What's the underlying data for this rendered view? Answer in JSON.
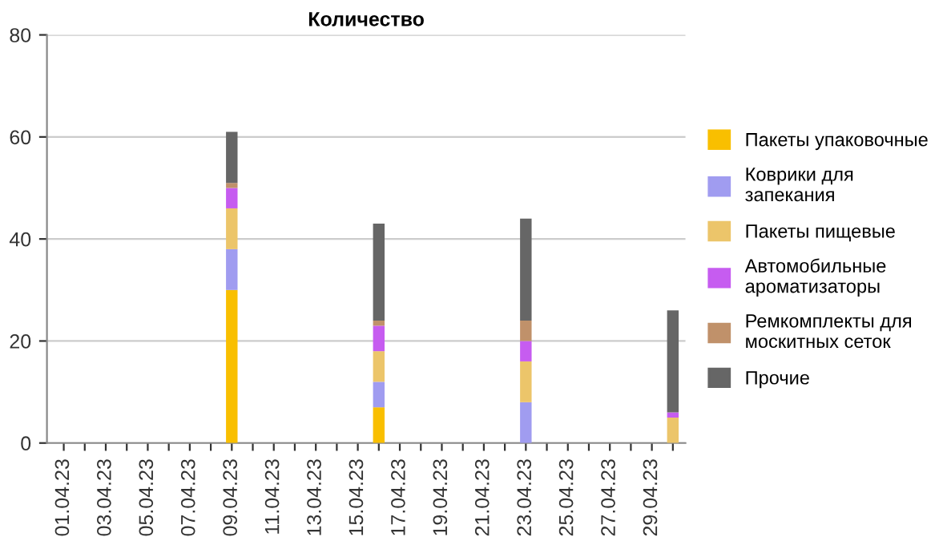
{
  "chart_data": {
    "type": "bar",
    "title": "Количество",
    "stacked": true,
    "categories": [
      "01.04.23",
      null,
      "03.04.23",
      null,
      "05.04.23",
      null,
      "07.04.23",
      null,
      "09.04.23",
      null,
      "11.04.23",
      null,
      "13.04.23",
      null,
      "15.04.23",
      null,
      "17.04.23",
      null,
      "19.04.23",
      null,
      "21.04.23",
      null,
      "23.04.23",
      null,
      "25.04.23",
      null,
      "27.04.23",
      null,
      "29.04.23",
      null
    ],
    "series": [
      {
        "name": "Пакеты упаковочные",
        "color": "#f9bf00",
        "values": [
          0,
          0,
          0,
          0,
          0,
          0,
          0,
          0,
          30,
          0,
          0,
          0,
          0,
          0,
          0,
          7,
          0,
          0,
          0,
          0,
          0,
          0,
          0,
          0,
          0,
          0,
          0,
          0,
          0,
          0
        ]
      },
      {
        "name": "Коврики для\nзапекания",
        "color": "#a09cf0",
        "values": [
          0,
          0,
          0,
          0,
          0,
          0,
          0,
          0,
          8,
          0,
          0,
          0,
          0,
          0,
          0,
          5,
          0,
          0,
          0,
          0,
          0,
          0,
          8,
          0,
          0,
          0,
          0,
          0,
          0,
          0
        ]
      },
      {
        "name": "Пакеты пищевые",
        "color": "#ecc56a",
        "values": [
          0,
          0,
          0,
          0,
          0,
          0,
          0,
          0,
          8,
          0,
          0,
          0,
          0,
          0,
          0,
          6,
          0,
          0,
          0,
          0,
          0,
          0,
          8,
          0,
          0,
          0,
          0,
          0,
          0,
          5
        ]
      },
      {
        "name": "Автомобильные\nароматизаторы",
        "color": "#c65cf0",
        "values": [
          0,
          0,
          0,
          0,
          0,
          0,
          0,
          0,
          4,
          0,
          0,
          0,
          0,
          0,
          0,
          5,
          0,
          0,
          0,
          0,
          0,
          0,
          4,
          0,
          0,
          0,
          0,
          0,
          0,
          1
        ]
      },
      {
        "name": "Ремкомплекты для\nмоскитных сеток",
        "color": "#c0916a",
        "values": [
          0,
          0,
          0,
          0,
          0,
          0,
          0,
          0,
          1,
          0,
          0,
          0,
          0,
          0,
          0,
          1,
          0,
          0,
          0,
          0,
          0,
          0,
          4,
          0,
          0,
          0,
          0,
          0,
          0,
          0
        ]
      },
      {
        "name": "Прочие",
        "color": "#666666",
        "values": [
          0,
          0,
          0,
          0,
          0,
          0,
          0,
          0,
          10,
          0,
          0,
          0,
          0,
          0,
          0,
          19,
          0,
          0,
          0,
          0,
          0,
          0,
          20,
          0,
          0,
          0,
          0,
          0,
          0,
          20
        ]
      }
    ],
    "ylim": [
      0,
      80
    ],
    "yticks": [
      0,
      20,
      40,
      60,
      80
    ],
    "grid": "y",
    "legend": "right"
  }
}
